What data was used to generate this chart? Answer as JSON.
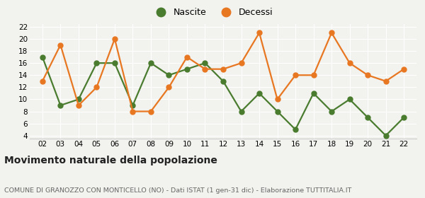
{
  "years": [
    2,
    3,
    4,
    5,
    6,
    7,
    8,
    9,
    10,
    11,
    12,
    13,
    14,
    15,
    16,
    17,
    18,
    19,
    20,
    21,
    22
  ],
  "nascite": [
    17,
    9,
    10,
    16,
    16,
    9,
    16,
    14,
    15,
    16,
    13,
    8,
    11,
    8,
    5,
    11,
    8,
    10,
    7,
    4,
    7
  ],
  "decessi": [
    13,
    19,
    9,
    12,
    20,
    8,
    8,
    12,
    17,
    15,
    15,
    16,
    21,
    10,
    14,
    14,
    21,
    16,
    14,
    13,
    15
  ],
  "nascite_color": "#4a7c2f",
  "decessi_color": "#e87722",
  "ylim_min": 3.5,
  "ylim_max": 22.5,
  "yticks": [
    4,
    6,
    8,
    10,
    12,
    14,
    16,
    18,
    20,
    22
  ],
  "xlabel_labels": [
    "02",
    "03",
    "04",
    "05",
    "06",
    "07",
    "08",
    "09",
    "10",
    "11",
    "12",
    "13",
    "14",
    "15",
    "16",
    "17",
    "18",
    "19",
    "20",
    "21",
    "22"
  ],
  "title": "Movimento naturale della popolazione",
  "subtitle": "COMUNE DI GRANOZZO CON MONTICELLO (NO) - Dati ISTAT (1 gen-31 dic) - Elaborazione TUTTITALIA.IT",
  "legend_nascite": "Nascite",
  "legend_decessi": "Decessi",
  "bg_color": "#f2f2ee",
  "grid_color": "#ffffff",
  "marker_size": 5,
  "line_width": 1.6,
  "title_fontsize": 10,
  "subtitle_fontsize": 6.8,
  "tick_fontsize": 7.5,
  "legend_fontsize": 9
}
